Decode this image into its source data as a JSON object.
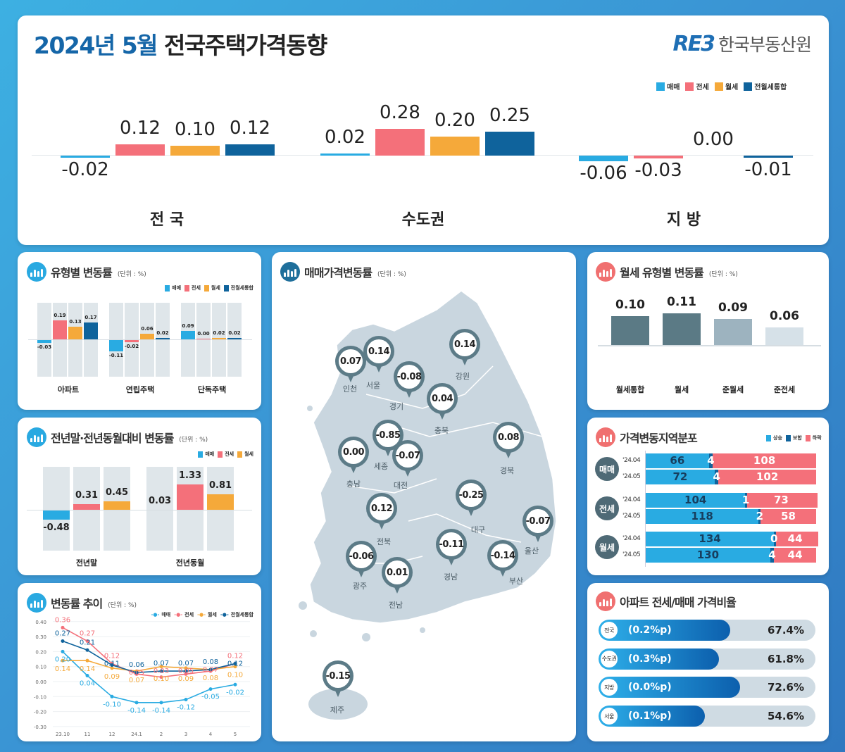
{
  "header": {
    "year_month": "2024년 5월",
    "title": "전국주택가격동향",
    "logo_mark": "RE3",
    "logo_text": "한국부동산원"
  },
  "colors": {
    "매매": "#29abe2",
    "전세": "#f4707a",
    "월세": "#f5a93a",
    "전월세통합": "#0f639c"
  },
  "legend_main": [
    "매매",
    "전세",
    "월세",
    "전월세통합"
  ],
  "unit": "(단위 : %)",
  "panels": {
    "type_change": "유형별 변동률",
    "yoy": "전년말·전년동월대비 변동률",
    "trend": "변동률 추이",
    "map": "매매가격변동률",
    "rent_type": "월세 유형별 변동률",
    "distribution": "가격변동지역분포",
    "ratio": "아파트 전세/매매 가격비율"
  },
  "chart_data": [
    {
      "type": "bar",
      "id": "overview",
      "categories": [
        "전 국",
        "수도권",
        "지 방"
      ],
      "series": [
        {
          "name": "매매",
          "values": [
            -0.02,
            0.02,
            -0.06
          ]
        },
        {
          "name": "전세",
          "values": [
            0.12,
            0.28,
            -0.03
          ]
        },
        {
          "name": "월세",
          "values": [
            0.1,
            0.2,
            0.0
          ]
        },
        {
          "name": "전월세통합",
          "values": [
            0.12,
            0.25,
            -0.01
          ]
        }
      ],
      "labels": [
        [
          "-0.02",
          "0.12",
          "0.10",
          "0.12"
        ],
        [
          "0.02",
          "0.28",
          "0.20",
          "0.25"
        ],
        [
          "-0.06",
          "-0.03",
          "0.00",
          "-0.01"
        ]
      ]
    },
    {
      "type": "bar",
      "id": "type_change",
      "categories": [
        "아파트",
        "연립주택",
        "단독주택"
      ],
      "series": [
        {
          "name": "매매",
          "values": [
            -0.03,
            -0.11,
            0.09
          ]
        },
        {
          "name": "전세",
          "values": [
            0.19,
            -0.02,
            0.0
          ]
        },
        {
          "name": "월세",
          "values": [
            0.13,
            0.06,
            0.02
          ]
        },
        {
          "name": "전월세통합",
          "values": [
            0.17,
            0.02,
            0.02
          ]
        }
      ],
      "labels": [
        [
          "-0.03",
          "0.19",
          "0.13",
          "0.17"
        ],
        [
          "-0.11",
          "-0.02",
          "0.06",
          "0.02"
        ],
        [
          "0.09",
          "0.00",
          "0.02",
          "0.02"
        ]
      ]
    },
    {
      "type": "bar",
      "id": "yoy",
      "categories": [
        "전년말",
        "전년동월"
      ],
      "legend": [
        "매매",
        "전세",
        "월세"
      ],
      "series": [
        {
          "name": "매매",
          "values": [
            -0.48,
            0.03
          ]
        },
        {
          "name": "전세",
          "values": [
            0.31,
            1.33
          ]
        },
        {
          "name": "월세",
          "values": [
            0.45,
            0.81
          ]
        }
      ],
      "labels": [
        [
          "-0.48",
          "0.31",
          "0.45"
        ],
        [
          "0.03",
          "1.33",
          "0.81"
        ]
      ]
    },
    {
      "type": "line",
      "id": "trend",
      "x": [
        "23.10",
        "11",
        "12",
        "24.1",
        "2",
        "3",
        "4",
        "5"
      ],
      "yticks": [
        "0.40",
        "0.30",
        "0.20",
        "0.10",
        "0.00",
        "-0.10",
        "-0.20",
        "-0.30"
      ],
      "ylim": [
        -0.3,
        0.4
      ],
      "grid": true,
      "series": [
        {
          "name": "매매",
          "values": [
            0.2,
            0.04,
            -0.1,
            -0.14,
            -0.14,
            -0.12,
            -0.05,
            -0.02
          ],
          "labels": [
            "0.20",
            "0.04",
            "-0.10",
            "-0.14",
            "-0.14",
            "-0.12",
            "-0.05",
            "-0.02"
          ]
        },
        {
          "name": "전세",
          "values": [
            0.36,
            0.27,
            0.12,
            0.05,
            0.03,
            0.05,
            0.07,
            0.12
          ],
          "labels": [
            "0.36",
            "0.27",
            "0.12",
            "0.05",
            "0.03",
            "0.05",
            "0.07",
            "0.12"
          ]
        },
        {
          "name": "월세",
          "values": [
            0.14,
            0.14,
            0.09,
            0.07,
            0.1,
            0.09,
            0.08,
            0.1
          ],
          "labels": [
            "0.14",
            "0.14",
            "0.09",
            "0.07",
            "0.10",
            "0.09",
            "0.08",
            "0.10"
          ]
        },
        {
          "name": "전월세통합",
          "values": [
            0.27,
            0.21,
            0.11,
            0.06,
            0.07,
            0.07,
            0.08,
            0.12
          ],
          "labels": [
            "0.27",
            "0.21",
            "0.11",
            "0.06",
            "0.07",
            "0.07",
            "0.08",
            "0.12"
          ]
        }
      ]
    },
    {
      "type": "bar",
      "id": "rent_type",
      "categories": [
        "월세통합",
        "월세",
        "준월세",
        "준전세"
      ],
      "values": [
        0.1,
        0.11,
        0.09,
        0.06
      ],
      "labels": [
        "0.10",
        "0.11",
        "0.09",
        "0.06"
      ],
      "colors": [
        "#5b7a85",
        "#5b7a85",
        "#9db3bf",
        "#d6e1e8"
      ]
    },
    {
      "type": "bar",
      "id": "distribution",
      "stacked": true,
      "legend": [
        "상승",
        "보합",
        "하락"
      ],
      "legend_colors": [
        "#29abe2",
        "#0f639c",
        "#f4707a"
      ],
      "groups": [
        {
          "name": "매매",
          "rows": [
            {
              "period": "'24.04",
              "values": [
                66,
                4,
                108
              ]
            },
            {
              "period": "'24.05",
              "values": [
                72,
                4,
                102
              ]
            }
          ]
        },
        {
          "name": "전세",
          "rows": [
            {
              "period": "'24.04",
              "values": [
                104,
                1,
                73
              ]
            },
            {
              "period": "'24.05",
              "values": [
                118,
                2,
                58
              ]
            }
          ]
        },
        {
          "name": "월세",
          "rows": [
            {
              "period": "'24.04",
              "values": [
                134,
                0,
                44
              ]
            },
            {
              "period": "'24.05",
              "values": [
                130,
                4,
                44
              ]
            }
          ]
        }
      ]
    },
    {
      "type": "bar",
      "id": "ratio",
      "rows": [
        {
          "region": "전국",
          "change": "(0.2%p)",
          "value": 67.4,
          "label": "67.4%"
        },
        {
          "region": "수도권",
          "change": "(0.3%p)",
          "value": 61.8,
          "label": "61.8%"
        },
        {
          "region": "지방",
          "change": "(0.0%p)",
          "value": 72.6,
          "label": "72.6%"
        },
        {
          "region": "서울",
          "change": "(0.1%p)",
          "value": 54.6,
          "label": "54.6%"
        }
      ]
    }
  ],
  "map": {
    "regions": [
      {
        "name": "인천",
        "value": "0.07"
      },
      {
        "name": "서울",
        "value": "0.14"
      },
      {
        "name": "경기",
        "value": "-0.08"
      },
      {
        "name": "강원",
        "value": "0.14"
      },
      {
        "name": "충북",
        "value": "0.04"
      },
      {
        "name": "세종",
        "value": "-0.85"
      },
      {
        "name": "대전",
        "value": "-0.07"
      },
      {
        "name": "충남",
        "value": "0.00"
      },
      {
        "name": "경북",
        "value": "0.08"
      },
      {
        "name": "대구",
        "value": "-0.25"
      },
      {
        "name": "전북",
        "value": "0.12"
      },
      {
        "name": "울산",
        "value": "-0.07"
      },
      {
        "name": "경남",
        "value": "-0.11"
      },
      {
        "name": "부산",
        "value": "-0.14"
      },
      {
        "name": "광주",
        "value": "-0.06"
      },
      {
        "name": "전남",
        "value": "0.01"
      },
      {
        "name": "제주",
        "value": "-0.15"
      }
    ]
  }
}
